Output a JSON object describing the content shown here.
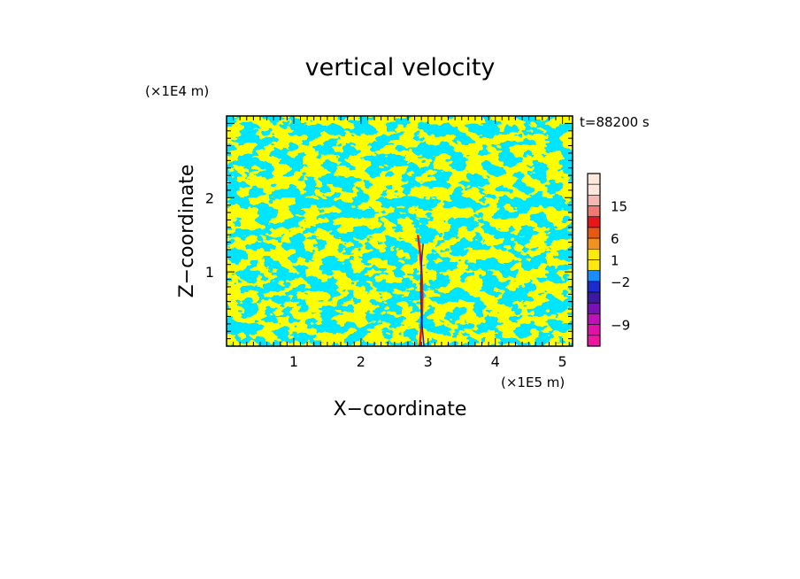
{
  "chart_data": {
    "type": "heatmap",
    "title": "vertical velocity",
    "xlabel": "X−coordinate",
    "ylabel": "Z−coordinate",
    "x_unit": "(×1E5 m)",
    "y_unit": "(×1E4 m)",
    "time_label": "t=88200 s",
    "xlim": [
      0,
      5.15
    ],
    "ylim": [
      0,
      3.1
    ],
    "x_ticks": [
      "1",
      "2",
      "3",
      "4",
      "5"
    ],
    "y_ticks": [
      "1",
      "2"
    ],
    "colorbar": {
      "tick_labels": [
        "15",
        "6",
        "1",
        "−2",
        "−9"
      ],
      "bins_top_to_bottom": [
        "#fde8dc",
        "#fde8dc",
        "#f4b8b0",
        "#ee7a72",
        "#e8151a",
        "#e55a10",
        "#f29020",
        "#fde910",
        "#fde910",
        "#1a8cff",
        "#1a2bd0",
        "#3a1aa0",
        "#7a10b8",
        "#c010b8",
        "#e010a8",
        "#f015a0"
      ]
    },
    "colors": {
      "positive": "#ffff00",
      "negative": "#00e5ff",
      "core_positive": "#e8151a",
      "core_negative": "#2a1ab0"
    },
    "pattern": "alternating positive/negative cellular updraft and downdraft bands with a narrow intense convective core near x≈2.9"
  }
}
